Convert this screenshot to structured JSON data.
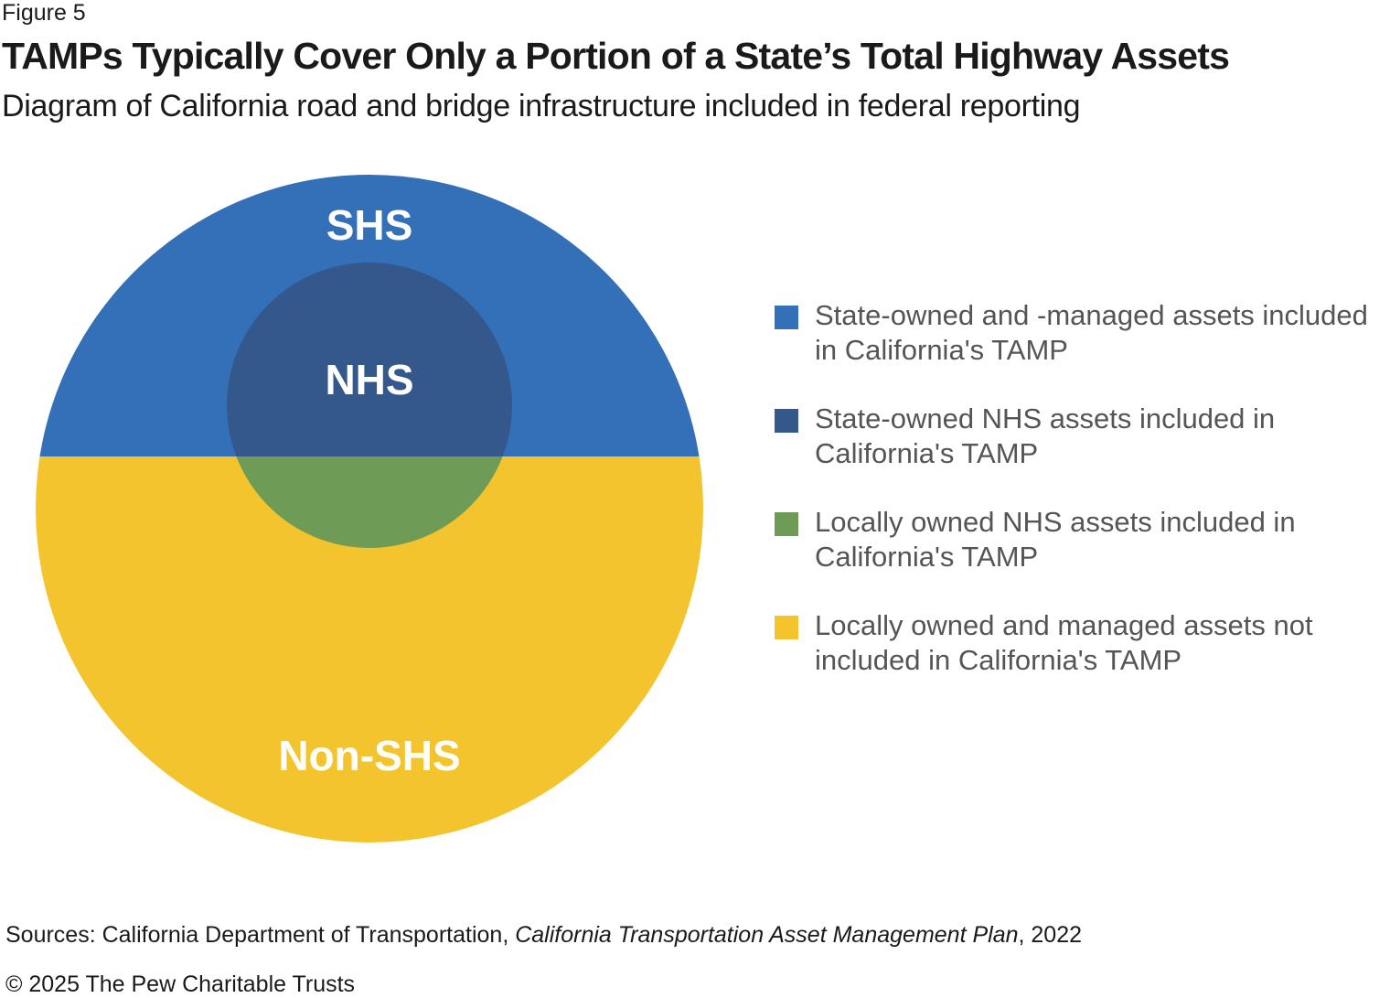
{
  "figure_label": "Figure 5",
  "title": "TAMPs Typically Cover Only a Portion of a State’s Total Highway Assets",
  "subtitle": "Diagram of California road and bridge infrastructure included in federal reporting",
  "diagram": {
    "labels": {
      "outer_top": "SHS",
      "inner": "NHS",
      "outer_bottom": "Non-SHS"
    },
    "colors": {
      "state_owned": "#3470B8",
      "state_nhs": "#34578C",
      "local_nhs": "#6E9B55",
      "local": "#F4C42E"
    }
  },
  "legend": [
    {
      "color": "#3470B8",
      "text": "State-owned and -managed assets included in California's TAMP"
    },
    {
      "color": "#34578C",
      "text": "State-owned NHS assets included in California's TAMP"
    },
    {
      "color": "#6E9B55",
      "text": "Locally owned NHS assets included in California's TAMP"
    },
    {
      "color": "#F4C42E",
      "text": "Locally owned and managed assets not included in California's TAMP"
    }
  ],
  "sources": {
    "prefix": "Sources: California Department of Transportation, ",
    "title_italic": "California Transportation Asset Management Plan",
    "suffix": ", 2022"
  },
  "copyright": "© 2025 The Pew Charitable Trusts"
}
